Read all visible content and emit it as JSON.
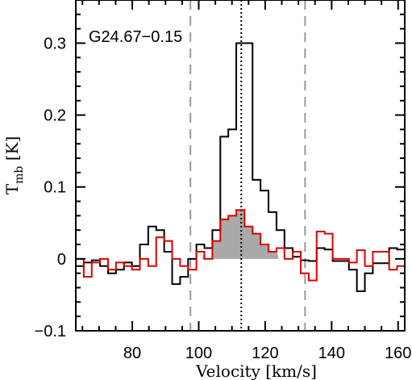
{
  "chart_data": {
    "type": "line",
    "title": "",
    "annotation": "G24.67−0.15",
    "xlabel": "Velocity [km/s]",
    "ylabel_main": "T",
    "ylabel_sub": "mb",
    "ylabel_unit": " [K]",
    "xlim": [
      63,
      162
    ],
    "ylim": [
      -0.1,
      0.36
    ],
    "xticks": [
      80,
      100,
      120,
      140,
      160
    ],
    "xtick_labels": [
      "80",
      "100",
      "120",
      "140",
      "160"
    ],
    "yticks": [
      -0.1,
      0,
      0.1,
      0.2,
      0.3
    ],
    "ytick_labels": [
      "−0.1",
      "0",
      "0.1",
      "0.2",
      "0.3"
    ],
    "grid": false,
    "vlines": [
      {
        "x": 97.5,
        "style": "dashed",
        "color": "#9a9a9a"
      },
      {
        "x": 112.8,
        "style": "dotted",
        "color": "#000000"
      },
      {
        "x": 132.0,
        "style": "dashed",
        "color": "#9a9a9a"
      }
    ],
    "shaded_region": {
      "x_start": 101,
      "x_end": 124,
      "series": 1,
      "color": "#a9a9a9"
    },
    "series": [
      {
        "name": "",
        "color": "#000000",
        "step": true,
        "x": [
          63,
          65.4,
          67.8,
          70.3,
          72.7,
          75.1,
          77.5,
          79.9,
          82.3,
          84.8,
          87.2,
          89.6,
          92.0,
          94.4,
          96.8,
          99.3,
          101.7,
          104.1,
          106.5,
          108.9,
          111.3,
          113.8,
          116.2,
          118.6,
          121.0,
          123.4,
          125.8,
          128.3,
          130.7,
          133.1,
          135.5,
          137.9,
          140.3,
          142.8,
          145.2,
          147.6,
          150.0,
          152.4,
          154.8,
          157.3,
          159.7
        ],
        "y": [
          -0.01,
          -0.005,
          -0.002,
          -0.01,
          -0.02,
          -0.015,
          -0.005,
          -0.01,
          0.02,
          0.045,
          0.04,
          0.01,
          -0.035,
          -0.025,
          0.0,
          0.02,
          0.015,
          0.04,
          0.17,
          0.18,
          0.3,
          0.3,
          0.11,
          0.095,
          0.065,
          0.04,
          0.015,
          0.003,
          -0.002,
          -0.003,
          0.015,
          0.013,
          -0.003,
          -0.003,
          -0.015,
          -0.045,
          -0.02,
          -0.006,
          -0.006,
          0.015,
          0.013
        ]
      },
      {
        "name": "",
        "color": "#dd0000",
        "step": true,
        "x": [
          63,
          65.4,
          67.8,
          70.3,
          72.7,
          75.1,
          77.5,
          79.9,
          82.3,
          84.8,
          87.2,
          89.6,
          92.0,
          94.4,
          96.8,
          99.3,
          101.7,
          104.1,
          106.5,
          108.9,
          111.3,
          113.8,
          116.2,
          118.6,
          121.0,
          123.4,
          125.8,
          128.3,
          130.7,
          133.1,
          135.5,
          137.9,
          140.3,
          142.8,
          145.2,
          147.6,
          150.0,
          152.4,
          154.8,
          157.3,
          159.7
        ],
        "y": [
          0.0,
          -0.025,
          -0.005,
          0.0,
          -0.015,
          -0.005,
          -0.01,
          -0.015,
          0.0,
          -0.01,
          0.03,
          0.025,
          0.0,
          -0.01,
          -0.015,
          0.01,
          0.0,
          0.025,
          0.055,
          0.06,
          0.068,
          0.045,
          0.035,
          0.02,
          0.01,
          0.015,
          0.0,
          0.01,
          -0.02,
          -0.03,
          0.038,
          0.035,
          0.0,
          0.0,
          -0.005,
          0.012,
          -0.01,
          0.01,
          0.01,
          -0.015,
          -0.01
        ]
      }
    ]
  }
}
